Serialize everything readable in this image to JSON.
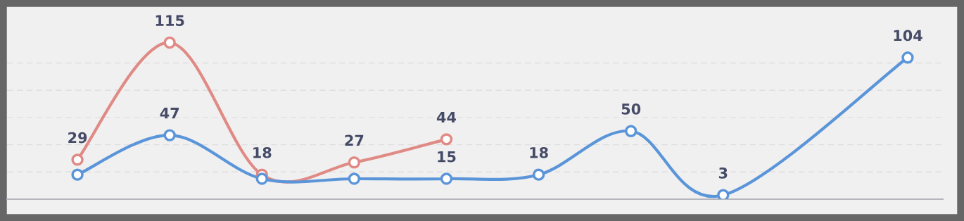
{
  "chart_data": {
    "type": "line",
    "categories": [
      null,
      null,
      null,
      null,
      null,
      null,
      null,
      null,
      null,
      null
    ],
    "series": [
      {
        "color": "#e08a85",
        "values": [
          29,
          115,
          18,
          27,
          44,
          null,
          null,
          null,
          null,
          null
        ],
        "value_labels": [
          "29",
          "115",
          "18",
          "27",
          "44",
          null,
          null,
          null,
          null,
          null
        ]
      },
      {
        "color": "#5b95d9",
        "values": [
          18,
          47,
          15,
          15,
          15,
          18,
          50,
          3,
          null,
          104
        ],
        "value_labels": [
          null,
          "47",
          null,
          null,
          "15",
          "18",
          "50",
          "3",
          null,
          "104"
        ]
      }
    ],
    "yticks": [
      {
        "value": 0,
        "label": null
      },
      {
        "value": 20,
        "label": null
      },
      {
        "value": 40,
        "label": null
      },
      {
        "value": 60,
        "label": null
      },
      {
        "value": 80,
        "label": null
      },
      {
        "value": 100,
        "label": null
      }
    ],
    "grid": "y",
    "marker": "circle",
    "line_style": "solid"
  }
}
